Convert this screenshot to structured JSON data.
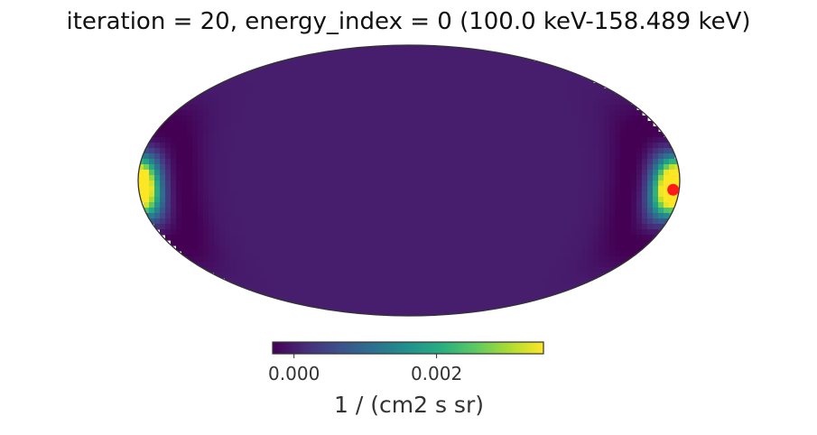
{
  "chart_data": {
    "type": "heatmap",
    "projection": "mollweide",
    "title": "iteration = 20, energy_index = 0 (100.0 keV-158.489 keV)",
    "background_value": 0.0,
    "hotspots": [
      {
        "lon_deg": 180,
        "lat_deg": -2,
        "peak": 0.0034
      },
      {
        "lon_deg": -176,
        "lat_deg": -5,
        "peak": 0.003
      }
    ],
    "marker": {
      "lon_deg": -176,
      "lat_deg": -5,
      "color": "#ff1a1a"
    },
    "colorbar": {
      "colormap": "viridis",
      "min": -0.0003,
      "max": 0.0035,
      "ticks": [
        0.0,
        0.002
      ],
      "tick_labels": [
        "0.000",
        "0.002"
      ],
      "label": "1 / (cm2 s sr)",
      "orientation": "horizontal",
      "placement": "bottom"
    }
  }
}
